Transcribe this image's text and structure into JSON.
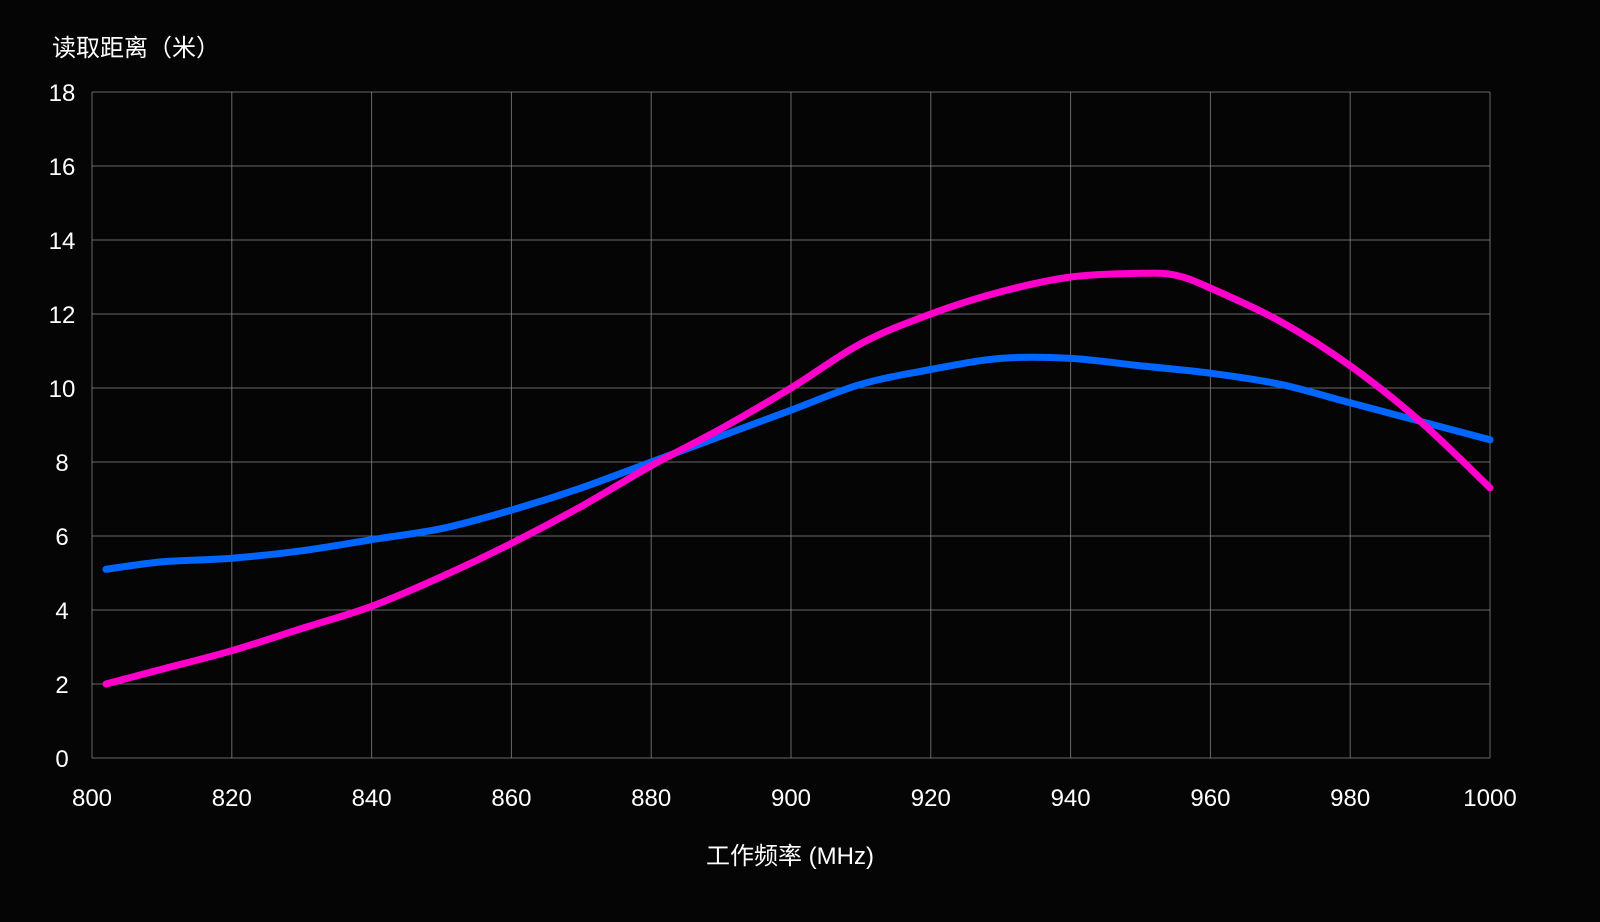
{
  "chart_data": {
    "type": "line",
    "ylabel": "读取距离（米）",
    "xlabel": "工作频率 (MHz)",
    "xlim": [
      800,
      1000
    ],
    "ylim": [
      0,
      18
    ],
    "grid": true,
    "x_ticks": [
      "800",
      "820",
      "840",
      "860",
      "880",
      "900",
      "920",
      "940",
      "960",
      "980",
      "1000"
    ],
    "y_ticks": [
      "0",
      "2",
      "4",
      "6",
      "8",
      "10",
      "12",
      "14",
      "16",
      "18"
    ],
    "series": [
      {
        "color": "#0066ff",
        "x": [
          802,
          810,
          820,
          830,
          840,
          850,
          860,
          870,
          880,
          890,
          900,
          910,
          920,
          930,
          940,
          950,
          960,
          970,
          980,
          990,
          1000
        ],
        "values": [
          5.1,
          5.3,
          5.4,
          5.6,
          5.9,
          6.2,
          6.7,
          7.3,
          8.0,
          8.7,
          9.4,
          10.1,
          10.5,
          10.8,
          10.8,
          10.6,
          10.4,
          10.1,
          9.6,
          9.1,
          8.6
        ]
      },
      {
        "color": "#ff00cc",
        "x": [
          802,
          810,
          820,
          830,
          840,
          850,
          860,
          870,
          880,
          890,
          900,
          910,
          920,
          930,
          940,
          950,
          955,
          960,
          970,
          980,
          990,
          1000
        ],
        "values": [
          2.0,
          2.4,
          2.9,
          3.5,
          4.1,
          4.9,
          5.8,
          6.8,
          7.9,
          8.9,
          10.0,
          11.2,
          12.0,
          12.6,
          13.0,
          13.1,
          13.05,
          12.7,
          11.8,
          10.6,
          9.1,
          7.3
        ]
      }
    ]
  }
}
